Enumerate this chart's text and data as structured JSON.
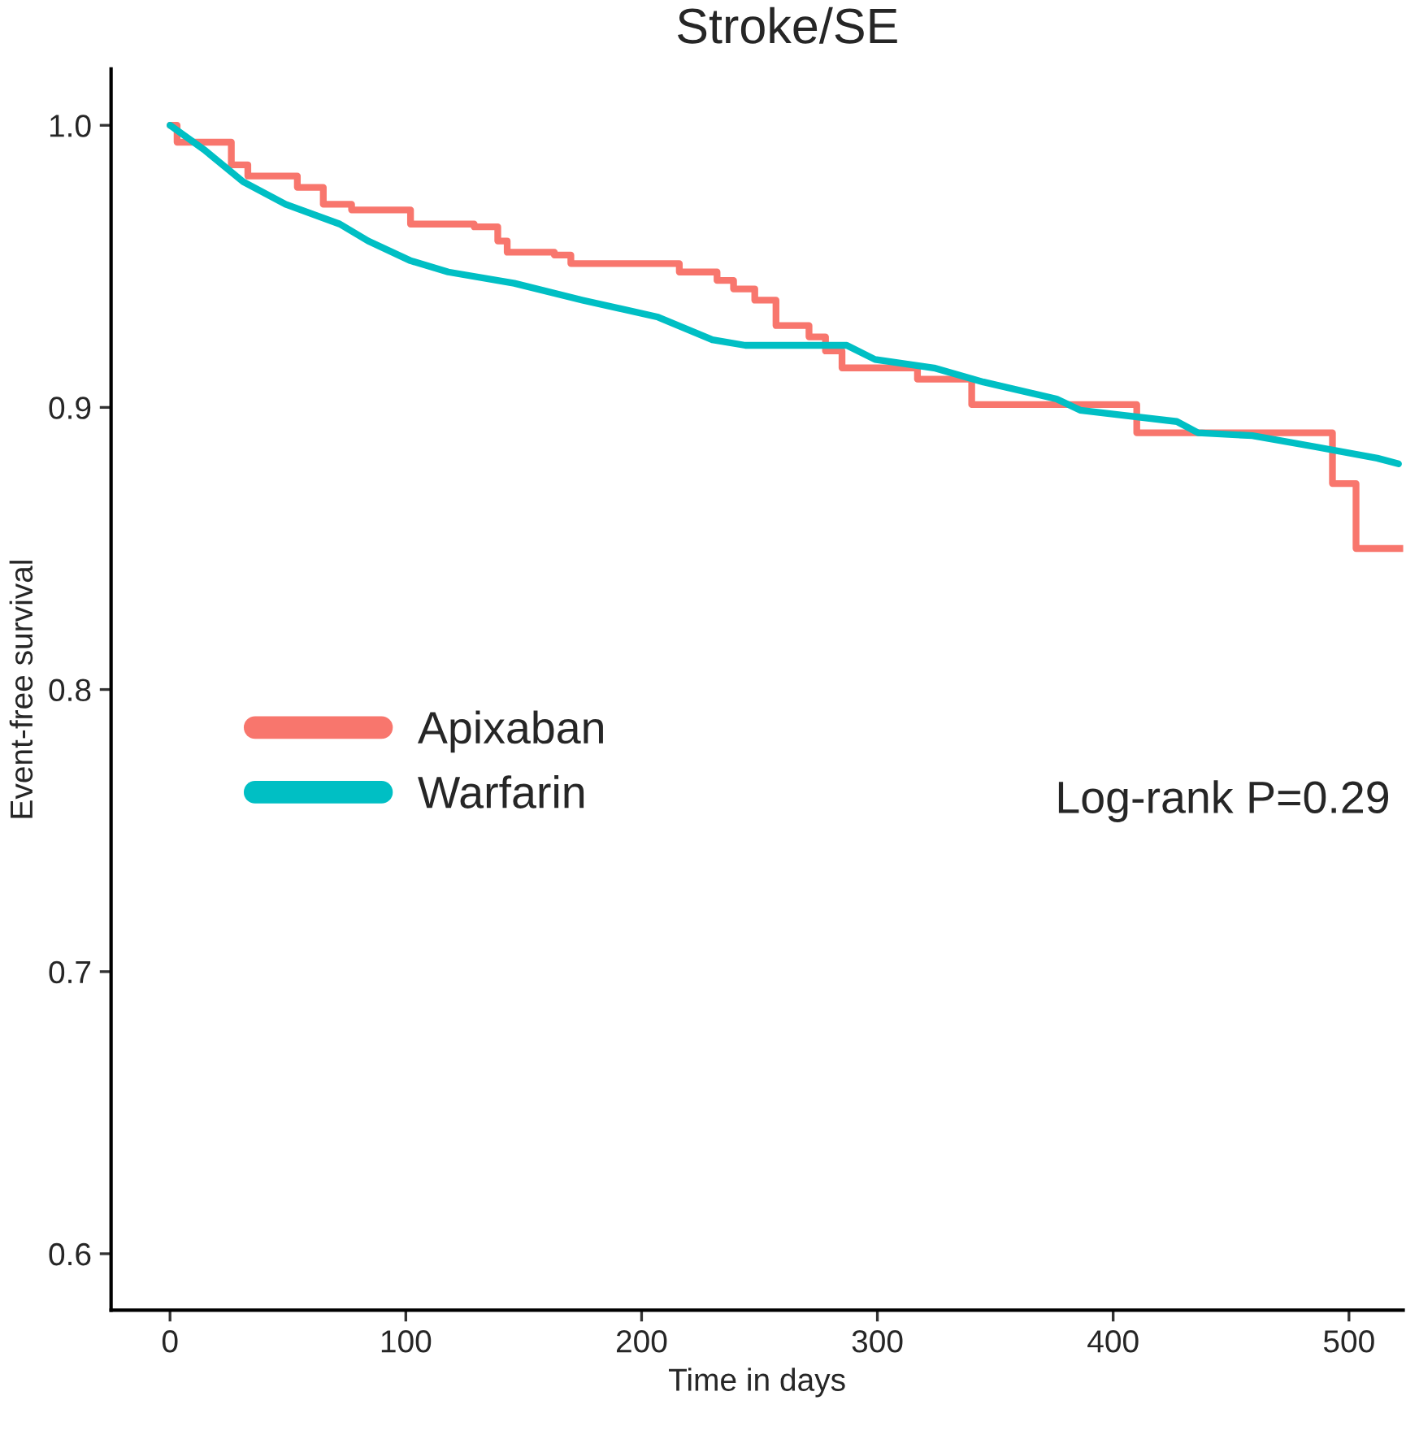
{
  "chart_data": {
    "type": "line",
    "title": "Stroke/SE",
    "xlabel": "Time in days",
    "ylabel": "Event-free survival",
    "annotations": [
      "Log-rank P=0.29"
    ],
    "series": [
      {
        "name": "Apixaban",
        "type": "step",
        "color": "#f8766d",
        "x": [
          0,
          3,
          26,
          33,
          54,
          65,
          77,
          102,
          129,
          139,
          143,
          163,
          170,
          216,
          232,
          239,
          248,
          257,
          271,
          278,
          285,
          317,
          340,
          410,
          493,
          503,
          523
        ],
        "values": [
          1.0,
          0.994,
          0.986,
          0.982,
          0.978,
          0.972,
          0.97,
          0.965,
          0.964,
          0.959,
          0.955,
          0.954,
          0.951,
          0.948,
          0.945,
          0.942,
          0.938,
          0.929,
          0.925,
          0.92,
          0.914,
          0.91,
          0.901,
          0.891,
          0.873,
          0.85,
          0.85
        ]
      },
      {
        "name": "Warfarin",
        "color": "#00bfc4",
        "x": [
          0,
          15,
          31,
          49,
          72,
          84,
          102,
          118,
          146,
          175,
          207,
          230,
          244,
          287,
          299,
          324,
          345,
          376,
          386,
          427,
          436,
          459,
          486,
          512,
          521
        ],
        "values": [
          1.0,
          0.991,
          0.98,
          0.972,
          0.965,
          0.959,
          0.952,
          0.948,
          0.944,
          0.938,
          0.932,
          0.924,
          0.922,
          0.922,
          0.917,
          0.914,
          0.909,
          0.903,
          0.899,
          0.895,
          0.891,
          0.89,
          0.886,
          0.882,
          0.88
        ]
      }
    ],
    "xlim": [
      -25,
      523
    ],
    "ylim": [
      0.58,
      1.02
    ],
    "xticks": [
      0,
      100,
      200,
      300,
      400,
      500
    ],
    "yticks": [
      0.6,
      0.7,
      0.8,
      0.9,
      {
        "value": 1,
        "label": "1.0"
      }
    ],
    "legend": "left",
    "grid": false
  }
}
